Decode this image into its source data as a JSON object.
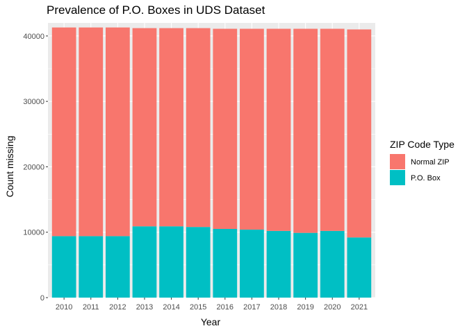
{
  "chart_data": {
    "type": "bar",
    "stacked": true,
    "title": "Prevalence of P.O. Boxes in UDS Dataset",
    "xlabel": "Year",
    "ylabel": "Count missing",
    "categories": [
      "2010",
      "2011",
      "2012",
      "2013",
      "2014",
      "2015",
      "2016",
      "2017",
      "2018",
      "2019",
      "2020",
      "2021"
    ],
    "ylim": [
      0,
      42000
    ],
    "yticks": [
      0,
      10000,
      20000,
      30000,
      40000
    ],
    "grid": true,
    "legend": {
      "title": "ZIP Code Type",
      "placement": "right",
      "entries": [
        "Normal ZIP",
        "P.O. Box"
      ]
    },
    "series": [
      {
        "name": "P.O. Box",
        "color": "#00BFC4",
        "values": [
          9400,
          9400,
          9400,
          10900,
          10900,
          10800,
          10500,
          10400,
          10200,
          9900,
          10200,
          9200
        ]
      },
      {
        "name": "Normal ZIP",
        "color": "#F8766D",
        "values": [
          31900,
          31900,
          31900,
          30300,
          30300,
          30400,
          30600,
          30700,
          30900,
          31200,
          30900,
          31800
        ]
      }
    ],
    "panel_background": "#EBEBEB",
    "gridline_color": "#FFFFFF"
  }
}
